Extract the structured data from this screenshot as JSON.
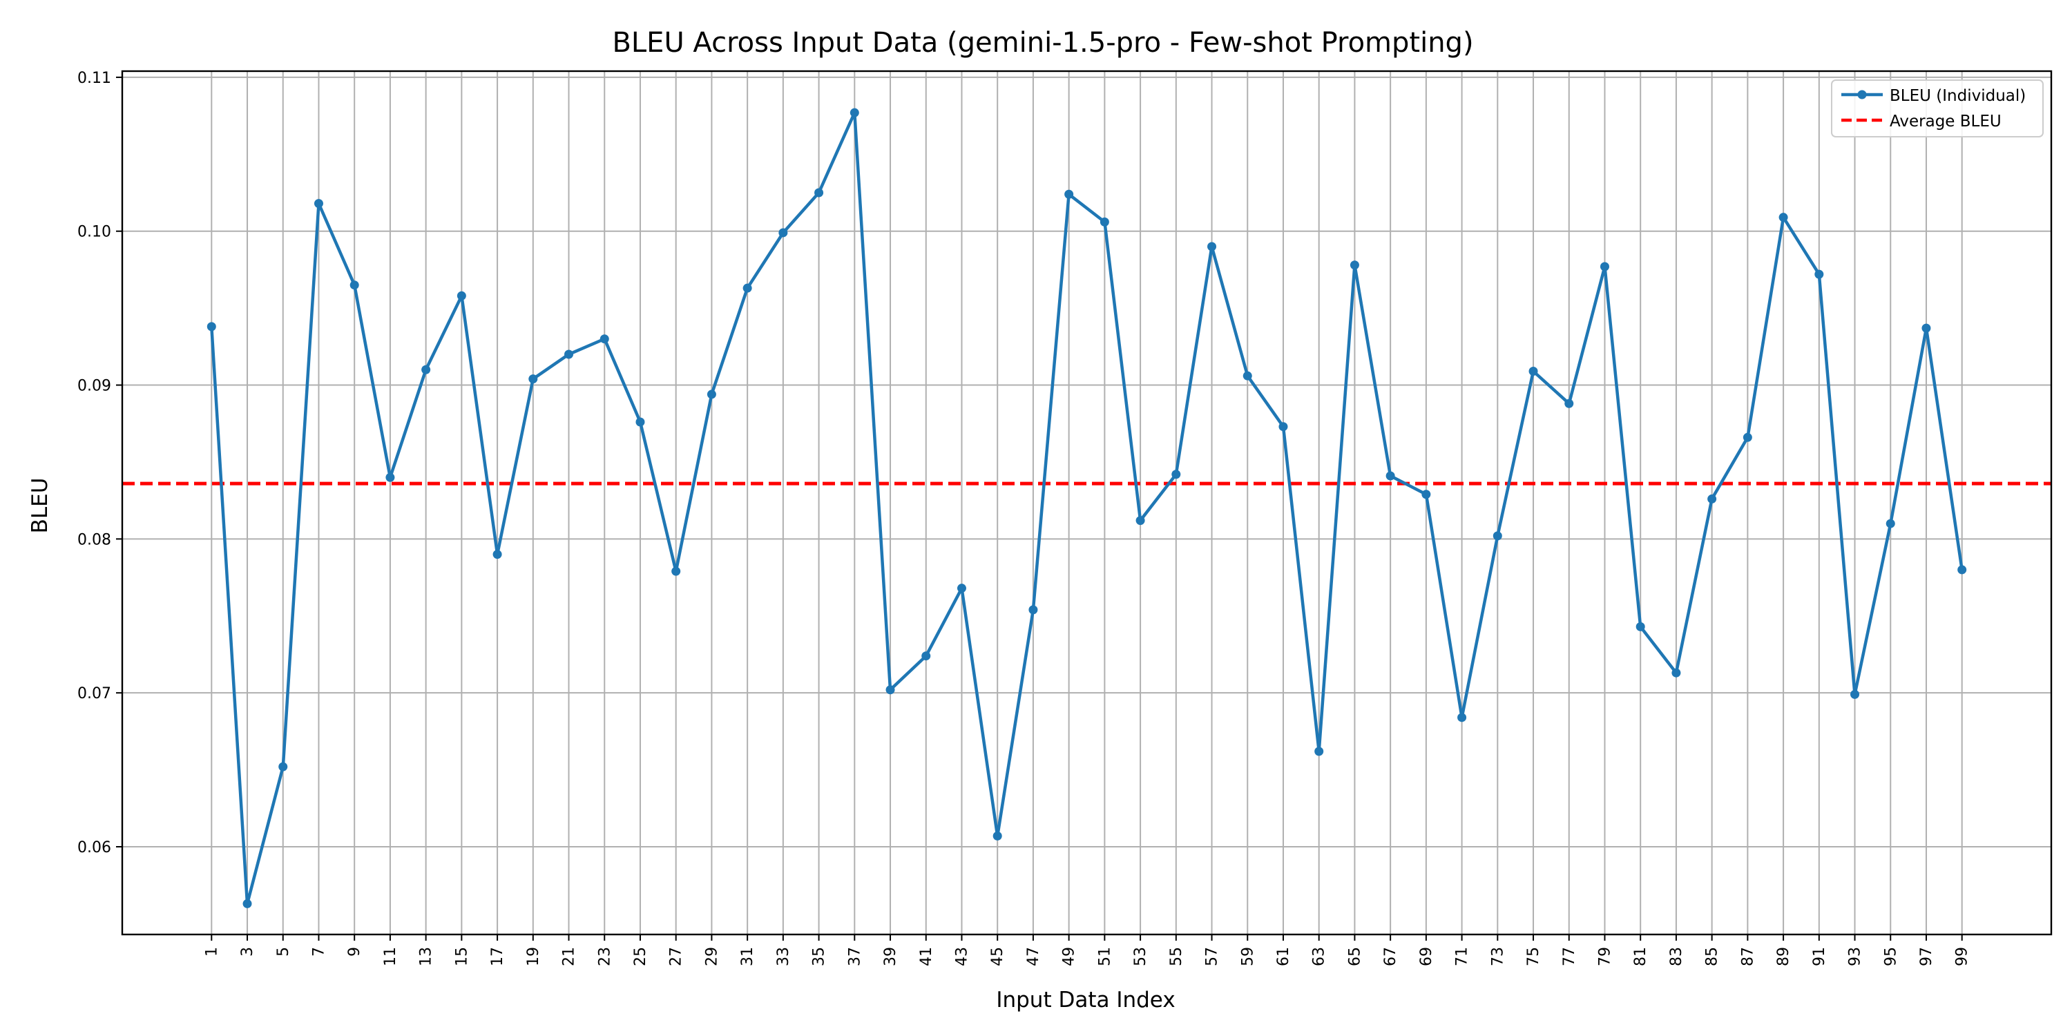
{
  "chart_data": {
    "type": "line",
    "title": "BLEU Across Input Data (gemini-1.5-pro - Few-shot Prompting)",
    "xlabel": "Input Data Index",
    "ylabel": "BLEU",
    "x": [
      1,
      3,
      5,
      7,
      9,
      11,
      13,
      15,
      17,
      19,
      21,
      23,
      25,
      27,
      29,
      31,
      33,
      35,
      37,
      39,
      41,
      43,
      45,
      47,
      49,
      51,
      53,
      55,
      57,
      59,
      61,
      63,
      65,
      67,
      69,
      71,
      73,
      75,
      77,
      79,
      81,
      83,
      85,
      87,
      89,
      91,
      93,
      95,
      97,
      99
    ],
    "series": [
      {
        "name": "BLEU (Individual)",
        "color": "#1f77b4",
        "values": [
          0.0938,
          0.0563,
          0.0652,
          0.1018,
          0.0965,
          0.084,
          0.091,
          0.0958,
          0.079,
          0.0904,
          0.092,
          0.093,
          0.0876,
          0.0779,
          0.0894,
          0.0963,
          0.0999,
          0.1025,
          0.1077,
          0.0702,
          0.0724,
          0.0768,
          0.0607,
          0.0754,
          0.1024,
          0.1006,
          0.0812,
          0.0842,
          0.099,
          0.0906,
          0.0873,
          0.0662,
          0.0978,
          0.0841,
          0.0829,
          0.0684,
          0.0802,
          0.0909,
          0.0888,
          0.0977,
          0.0743,
          0.0713,
          0.0826,
          0.0866,
          0.1009,
          0.0972,
          0.0699,
          0.081,
          0.0937,
          0.078
        ]
      }
    ],
    "average": {
      "name": "Average BLEU",
      "value": 0.0836,
      "color": "#ff0000"
    },
    "xticks": [
      "1",
      "3",
      "5",
      "7",
      "9",
      "11",
      "13",
      "15",
      "17",
      "19",
      "21",
      "23",
      "25",
      "27",
      "29",
      "31",
      "33",
      "35",
      "37",
      "39",
      "41",
      "43",
      "45",
      "47",
      "49",
      "51",
      "53",
      "55",
      "57",
      "59",
      "61",
      "63",
      "65",
      "67",
      "69",
      "71",
      "73",
      "75",
      "77",
      "79",
      "81",
      "83",
      "85",
      "87",
      "89",
      "91",
      "93",
      "95",
      "97",
      "99"
    ],
    "yticks": [
      0.06,
      0.07,
      0.08,
      0.09,
      0.1,
      0.11
    ],
    "ytick_labels": [
      "0.06",
      "0.07",
      "0.08",
      "0.09",
      "0.10",
      "0.11"
    ],
    "xlim": [
      -4,
      104
    ],
    "ylim": [
      0.0543,
      0.1104
    ],
    "grid": true,
    "legend": "top-right"
  }
}
